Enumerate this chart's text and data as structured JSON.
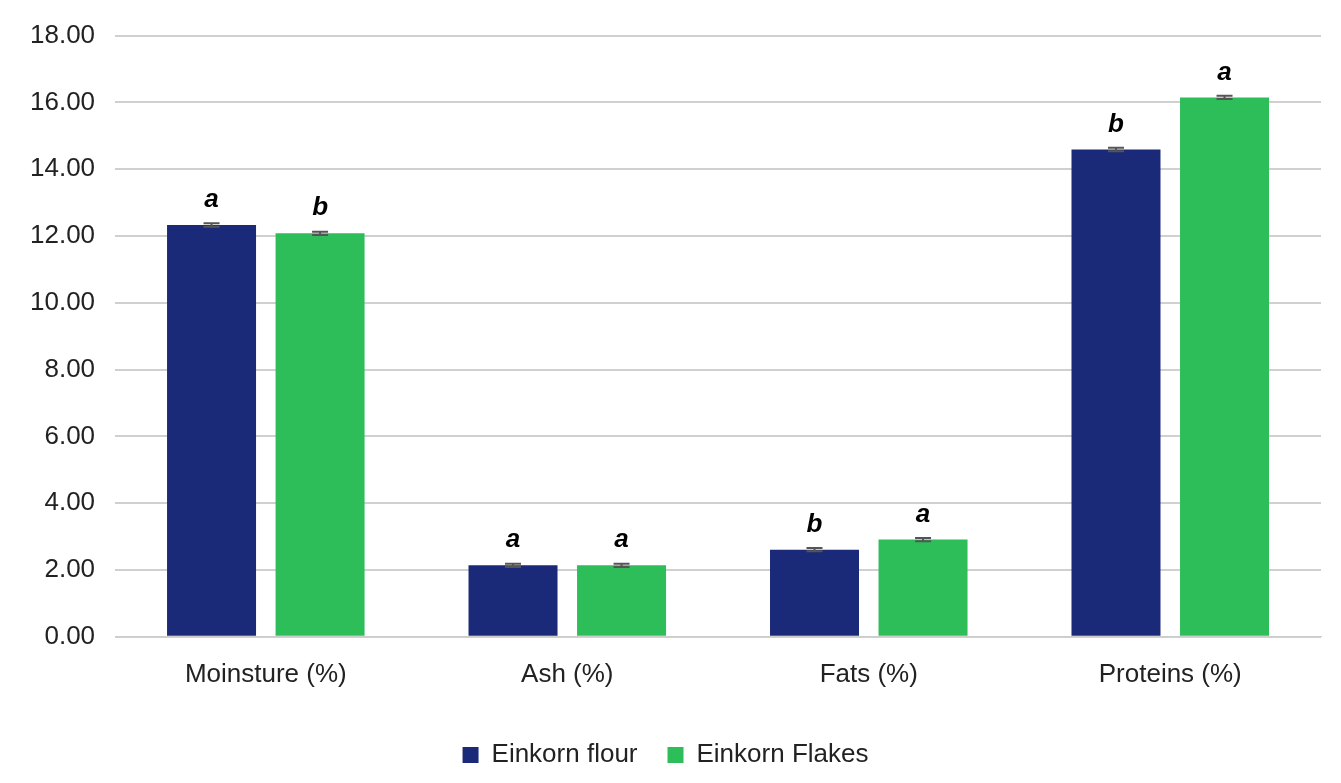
{
  "chart_data": {
    "type": "bar",
    "categories": [
      "Moinsture (%)",
      "Ash (%)",
      "Fats (%)",
      "Proteins (%)"
    ],
    "series": [
      {
        "name": "Einkorn flour",
        "color": "#1b2a78",
        "values": [
          12.33,
          2.14,
          2.61,
          14.59
        ],
        "value_labels": [
          "a",
          "a",
          "b",
          "b"
        ],
        "errors": [
          0.05,
          0.05,
          0.05,
          0.05
        ]
      },
      {
        "name": "Einkorn Flakes",
        "color": "#2dbe5a",
        "values": [
          12.08,
          2.14,
          2.91,
          16.15
        ],
        "value_labels": [
          "b",
          "a",
          "a",
          "a"
        ],
        "errors": [
          0.05,
          0.05,
          0.05,
          0.05
        ]
      }
    ],
    "ylim": [
      0,
      18
    ],
    "yticks": [
      {
        "value": 0,
        "label": "0.00"
      },
      {
        "value": 2,
        "label": "2.00"
      },
      {
        "value": 4,
        "label": "4.00"
      },
      {
        "value": 6,
        "label": "6.00"
      },
      {
        "value": 8,
        "label": "8.00"
      },
      {
        "value": 10,
        "label": "10.00"
      },
      {
        "value": 12,
        "label": "12.00"
      },
      {
        "value": 14,
        "label": "14.00"
      },
      {
        "value": 16,
        "label": "16.00"
      },
      {
        "value": 18,
        "label": "18.00"
      }
    ],
    "grid": "y",
    "legend": "bottom"
  }
}
